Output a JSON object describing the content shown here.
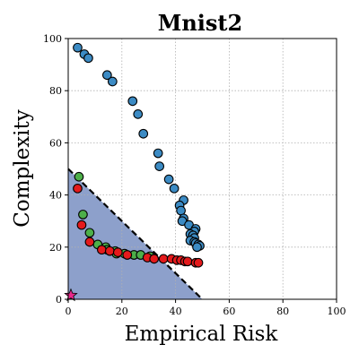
{
  "chart_data": {
    "type": "scatter",
    "title": "Mnist2",
    "xlabel": "Empirical Risk",
    "ylabel": "Complexity",
    "xlim": [
      0,
      100
    ],
    "ylim": [
      0,
      100
    ],
    "xticks": [
      0,
      20,
      40,
      60,
      80,
      100
    ],
    "yticks": [
      0,
      20,
      40,
      60,
      80,
      100
    ],
    "grid": true,
    "region": {
      "color": "#8da0cb",
      "boundary": [
        [
          0,
          50
        ],
        [
          50,
          0
        ]
      ]
    },
    "series": [
      {
        "color": "#3c8bc4",
        "points": [
          [
            3.5,
            96.5
          ],
          [
            6,
            94
          ],
          [
            7.5,
            92.5
          ],
          [
            14.5,
            86
          ],
          [
            16.5,
            83.5
          ],
          [
            24,
            76
          ],
          [
            26,
            71
          ],
          [
            28,
            63.5
          ],
          [
            33.5,
            56
          ],
          [
            34,
            51
          ],
          [
            37.5,
            46
          ],
          [
            39.5,
            42.5
          ],
          [
            43,
            38
          ],
          [
            41.5,
            36
          ],
          [
            42,
            34
          ],
          [
            43,
            31
          ],
          [
            42.5,
            30
          ],
          [
            45,
            28.5
          ],
          [
            47.5,
            27
          ],
          [
            47,
            26
          ],
          [
            45.5,
            25
          ],
          [
            46.5,
            24.5
          ],
          [
            47,
            23.5
          ],
          [
            45.5,
            22.5
          ],
          [
            47,
            22
          ],
          [
            47.5,
            21.5
          ],
          [
            48.5,
            21
          ],
          [
            49,
            20.5
          ],
          [
            48,
            20
          ]
        ]
      },
      {
        "color": "#4daf4a",
        "points": [
          [
            4,
            47
          ],
          [
            5.5,
            32.5
          ],
          [
            8,
            25.5
          ],
          [
            11,
            21
          ],
          [
            14,
            20
          ],
          [
            14.5,
            19
          ],
          [
            17.5,
            18.5
          ],
          [
            18,
            17.5
          ],
          [
            21,
            17.5
          ],
          [
            24.5,
            17
          ],
          [
            27,
            17
          ],
          [
            30.5,
            16.5
          ]
        ]
      },
      {
        "color": "#e41a1c",
        "points": [
          [
            3.5,
            42.5
          ],
          [
            5,
            28.5
          ],
          [
            8,
            22
          ],
          [
            12.5,
            19
          ],
          [
            15.5,
            18.5
          ],
          [
            18.5,
            18
          ],
          [
            22,
            17
          ],
          [
            29.5,
            16
          ],
          [
            32,
            15.5
          ],
          [
            35.5,
            15.5
          ],
          [
            38.5,
            15.5
          ],
          [
            40.5,
            15
          ],
          [
            42,
            15
          ],
          [
            43.5,
            14.5
          ],
          [
            44.5,
            14.5
          ],
          [
            47.5,
            14
          ],
          [
            48.5,
            14
          ]
        ]
      },
      {
        "color": "#e7298a",
        "marker": "star",
        "points": [
          [
            1,
            1.5
          ]
        ]
      }
    ]
  }
}
